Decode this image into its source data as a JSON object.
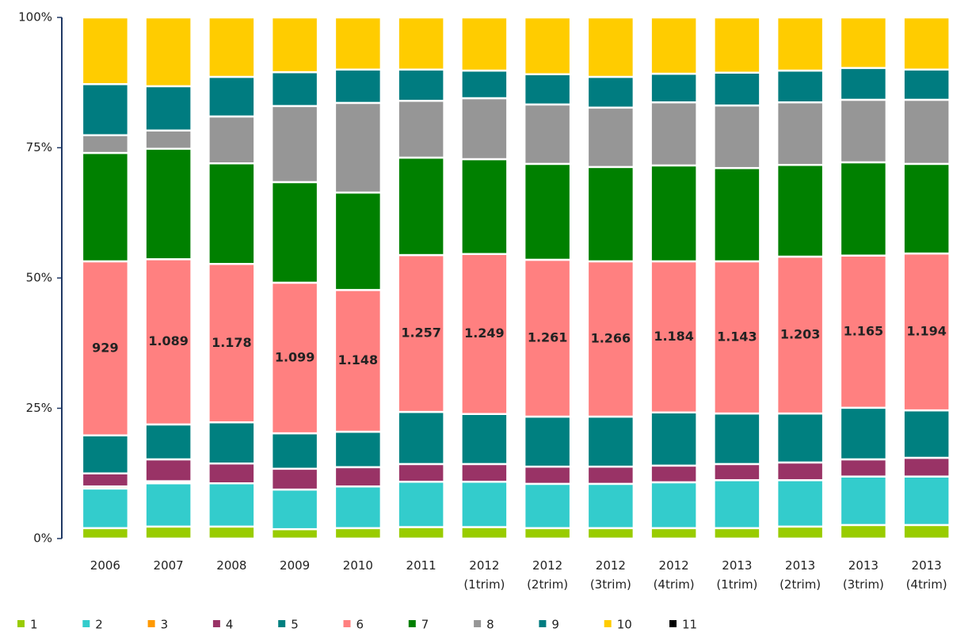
{
  "chart_data": {
    "type": "bar",
    "stacked": true,
    "categories": [
      "2006",
      "2007",
      "2008",
      "2009",
      "2010",
      "2011",
      "2012 (1trim)",
      "2012 (2trim)",
      "2012 (3trim)",
      "2012 (4trim)",
      "2013 (1trim)",
      "2013 (2trim)",
      "2013 (3trim)",
      "2013 (4trim)"
    ],
    "series": [
      {
        "name": "1",
        "color": "#99cc00",
        "values": [
          2,
          2.3,
          2.3,
          1.8,
          2,
          2.2,
          2.2,
          2,
          2,
          2,
          2,
          2.3,
          2.6,
          2.6
        ]
      },
      {
        "name": "2",
        "color": "#33cccc",
        "values": [
          7.6,
          8.3,
          8.3,
          7.6,
          8,
          8.7,
          8.7,
          8.5,
          8.5,
          8.8,
          9.2,
          8.9,
          9.3,
          9.3
        ]
      },
      {
        "name": "3",
        "color": "#ff9900",
        "values": [
          0.4,
          0.4,
          0,
          0,
          0,
          0,
          0,
          0,
          0,
          0,
          0,
          0,
          0,
          0
        ]
      },
      {
        "name": "4",
        "color": "#993366",
        "values": [
          2.5,
          4.2,
          3.8,
          4,
          3.7,
          3.4,
          3.4,
          3.3,
          3.3,
          3.2,
          3.1,
          3.4,
          3.3,
          3.6
        ]
      },
      {
        "name": "5",
        "color": "#008080",
        "values": [
          7.3,
          6.7,
          7.9,
          6.8,
          6.8,
          10,
          9.6,
          9.6,
          9.6,
          10.2,
          9.7,
          9.4,
          9.9,
          9.1
        ]
      },
      {
        "name": "6",
        "color": "#ff8080",
        "values": [
          33.4,
          31.7,
          30.4,
          28.9,
          27.2,
          30.1,
          30.7,
          30.1,
          29.8,
          29,
          29.2,
          30.1,
          29.2,
          30.1
        ]
      },
      {
        "name": "7",
        "color": "#008000",
        "values": [
          20.8,
          21.2,
          19.3,
          19.3,
          18.7,
          18.7,
          18.2,
          18.4,
          18.1,
          18.4,
          17.9,
          17.6,
          17.9,
          17.2
        ]
      },
      {
        "name": "8",
        "color": "#969696",
        "values": [
          3.4,
          3.5,
          9,
          14.6,
          17.2,
          10.9,
          11.7,
          11.4,
          11.4,
          12.1,
          12,
          12,
          12,
          12.3
        ]
      },
      {
        "name": "9",
        "color": "#007c80",
        "values": [
          9.8,
          8.5,
          7.6,
          6.5,
          6.4,
          6,
          5.3,
          5.8,
          5.9,
          5.5,
          6.3,
          6.1,
          6.1,
          5.8
        ]
      },
      {
        "name": "10",
        "color": "#ffcc00",
        "values": [
          12.8,
          13.2,
          11.4,
          10.5,
          10,
          10,
          10.2,
          10.9,
          11.4,
          10.8,
          10.6,
          10.2,
          9.7,
          10
        ]
      },
      {
        "name": "11",
        "color": "#000000",
        "values": [
          0,
          0,
          0,
          0,
          0,
          0,
          0,
          0,
          0,
          0,
          0,
          0,
          0,
          0
        ]
      }
    ],
    "annotations": [
      "929",
      "1.089",
      "1.178",
      "1.099",
      "1.148",
      "1.257",
      "1.249",
      "1.261",
      "1.266",
      "1.184",
      "1.143",
      "1.203",
      "1.165",
      "1.194"
    ],
    "ylim": [
      0,
      100
    ],
    "yticks": [
      {
        "value": 0,
        "label": "0%"
      },
      {
        "value": 25,
        "label": "25%"
      },
      {
        "value": 50,
        "label": "50%"
      },
      {
        "value": 75,
        "label": "75%"
      },
      {
        "value": 100,
        "label": "100%"
      }
    ],
    "legend": "bottom"
  }
}
